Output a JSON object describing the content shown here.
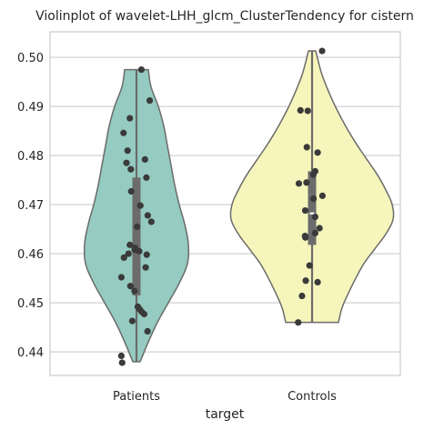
{
  "chart_data": {
    "type": "violin",
    "title": "Violinplot of wavelet-LHH_glcm_ClusterTendency for cistern",
    "xlabel": "target",
    "ylabel": "",
    "categories": [
      "Patients",
      "Controls"
    ],
    "ylim": [
      0.4352,
      0.5052
    ],
    "yticks": [
      0.44,
      0.45,
      0.46,
      0.47,
      0.48,
      0.49,
      0.5
    ],
    "ytick_labels": [
      "0.44",
      "0.45",
      "0.46",
      "0.47",
      "0.48",
      "0.49",
      "0.50"
    ],
    "grid": true,
    "series": [
      {
        "category": "Patients",
        "color": "#95cbc0",
        "min": 0.438,
        "max": 0.4975,
        "q1": 0.4515,
        "median": 0.4605,
        "q3": 0.4755,
        "density": [
          [
            0.438,
            4
          ],
          [
            0.442,
            13
          ],
          [
            0.446,
            23
          ],
          [
            0.45,
            35
          ],
          [
            0.454,
            47
          ],
          [
            0.458,
            56
          ],
          [
            0.462,
            57
          ],
          [
            0.466,
            53
          ],
          [
            0.47,
            47
          ],
          [
            0.474,
            42
          ],
          [
            0.478,
            38
          ],
          [
            0.482,
            34
          ],
          [
            0.486,
            30
          ],
          [
            0.49,
            24
          ],
          [
            0.494,
            16
          ],
          [
            0.4975,
            13
          ]
        ],
        "points": [
          0.4975,
          0.4912,
          0.4876,
          0.4846,
          0.481,
          0.4792,
          0.4785,
          0.4772,
          0.4755,
          0.4727,
          0.4698,
          0.4678,
          0.4665,
          0.4655,
          0.4618,
          0.4612,
          0.4608,
          0.4605,
          0.46,
          0.4598,
          0.4592,
          0.4572,
          0.4552,
          0.4534,
          0.4524,
          0.4492,
          0.4487,
          0.4482,
          0.4477,
          0.4463,
          0.4442,
          0.4392,
          0.4378
        ]
      },
      {
        "category": "Controls",
        "color": "#f6f5bb",
        "min": 0.446,
        "max": 0.5013,
        "q1": 0.4618,
        "median": 0.4682,
        "q3": 0.4768,
        "density": [
          [
            0.446,
            29
          ],
          [
            0.449,
            33
          ],
          [
            0.452,
            40
          ],
          [
            0.455,
            48
          ],
          [
            0.458,
            57
          ],
          [
            0.461,
            69
          ],
          [
            0.464,
            81
          ],
          [
            0.467,
            89
          ],
          [
            0.47,
            88
          ],
          [
            0.473,
            81
          ],
          [
            0.476,
            72
          ],
          [
            0.479,
            61
          ],
          [
            0.482,
            50
          ],
          [
            0.485,
            40
          ],
          [
            0.488,
            31
          ],
          [
            0.491,
            23
          ],
          [
            0.494,
            16
          ],
          [
            0.497,
            10
          ],
          [
            0.5013,
            4
          ]
        ],
        "points": [
          0.5013,
          0.4892,
          0.4891,
          0.4817,
          0.4806,
          0.4768,
          0.4761,
          0.4745,
          0.4743,
          0.4718,
          0.4712,
          0.4688,
          0.4675,
          0.4652,
          0.4642,
          0.4636,
          0.4633,
          0.4576,
          0.4545,
          0.4542,
          0.4514,
          0.446
        ]
      }
    ]
  },
  "colors": {
    "outline": "#6b6b6b",
    "box": "#6b6b6b",
    "median": "#ffffff",
    "point": "#3a3a3a",
    "grid": "#cccccc",
    "spine": "#cccccc"
  }
}
